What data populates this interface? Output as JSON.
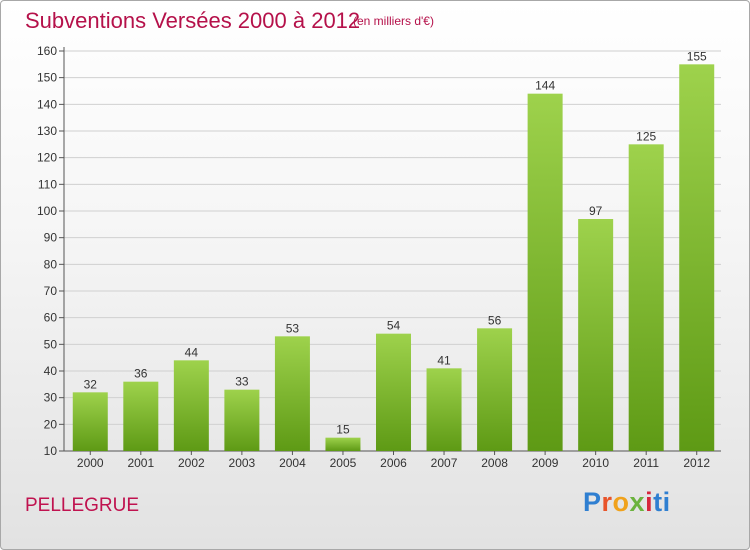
{
  "chart_data": {
    "type": "bar",
    "title": "Subventions Versées 2000 à 2012",
    "unit_note": "(en milliers d'€)",
    "categories": [
      "2000",
      "2001",
      "2002",
      "2003",
      "2004",
      "2005",
      "2006",
      "2007",
      "2008",
      "2009",
      "2010",
      "2011",
      "2012"
    ],
    "values": [
      32,
      36,
      44,
      33,
      53,
      15,
      54,
      41,
      56,
      144,
      97,
      125,
      155
    ],
    "ylim": [
      10,
      160
    ],
    "yticks": [
      10,
      20,
      30,
      40,
      50,
      60,
      70,
      80,
      90,
      100,
      110,
      120,
      130,
      140,
      150,
      160
    ],
    "grid": true,
    "bar_color": "#7cbd2e"
  },
  "commune": "PELLEGRUE",
  "logo": {
    "letters": [
      "P",
      "r",
      "o",
      "x",
      "i",
      "ti"
    ]
  }
}
